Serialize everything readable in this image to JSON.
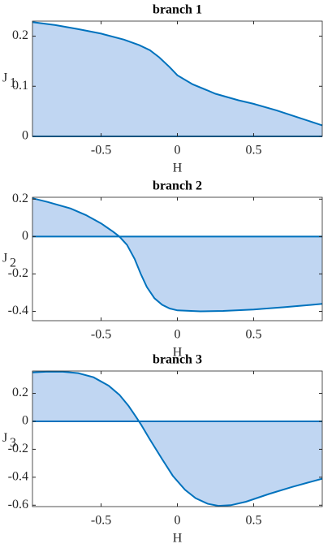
{
  "chart_data": [
    {
      "type": "area",
      "title": "branch 1",
      "xlabel": "H",
      "ylabel": "J",
      "ylabel_sub": "1",
      "color": "#0072bd",
      "fill": "#c0d6f2",
      "x": [
        -0.95,
        -0.8,
        -0.65,
        -0.5,
        -0.35,
        -0.25,
        -0.18,
        -0.12,
        -0.05,
        0,
        0.1,
        0.25,
        0.4,
        0.5,
        0.65,
        0.8,
        0.95
      ],
      "values": [
        0.228,
        0.222,
        0.214,
        0.205,
        0.193,
        0.182,
        0.172,
        0.158,
        0.138,
        0.122,
        0.104,
        0.085,
        0.072,
        0.065,
        0.052,
        0.037,
        0.022
      ],
      "xlim": [
        -0.95,
        0.95
      ],
      "ylim": [
        0,
        0.23
      ],
      "xticks": [
        -0.5,
        0,
        0.5
      ],
      "yticks": [
        0,
        0.1,
        0.2
      ]
    },
    {
      "type": "area",
      "title": "branch 2",
      "xlabel": "H",
      "ylabel": "J",
      "ylabel_sub": "2",
      "color": "#0072bd",
      "fill": "#c0d6f2",
      "x": [
        -0.95,
        -0.85,
        -0.7,
        -0.6,
        -0.5,
        -0.42,
        -0.38,
        -0.33,
        -0.28,
        -0.24,
        -0.2,
        -0.15,
        -0.1,
        -0.05,
        0,
        0.15,
        0.3,
        0.5,
        0.7,
        0.95
      ],
      "values": [
        0.205,
        0.185,
        0.15,
        0.115,
        0.07,
        0.025,
        0,
        -0.045,
        -0.12,
        -0.2,
        -0.27,
        -0.33,
        -0.365,
        -0.385,
        -0.395,
        -0.4,
        -0.398,
        -0.39,
        -0.378,
        -0.36
      ],
      "xlim": [
        -0.95,
        0.95
      ],
      "ylim": [
        -0.45,
        0.21
      ],
      "xticks": [
        -0.5,
        0,
        0.5
      ],
      "yticks": [
        -0.4,
        -0.2,
        0,
        0.2
      ]
    },
    {
      "type": "area",
      "title": "branch 3",
      "xlabel": "H",
      "ylabel": "J",
      "ylabel_sub": "3",
      "color": "#0072bd",
      "fill": "#c0d6f2",
      "x": [
        -0.95,
        -0.85,
        -0.75,
        -0.65,
        -0.55,
        -0.45,
        -0.38,
        -0.32,
        -0.27,
        -0.24,
        -0.18,
        -0.1,
        -0.03,
        0.05,
        0.12,
        0.2,
        0.27,
        0.35,
        0.45,
        0.6,
        0.75,
        0.95
      ],
      "values": [
        0.35,
        0.356,
        0.355,
        0.345,
        0.315,
        0.255,
        0.19,
        0.11,
        0.03,
        -0.02,
        -0.13,
        -0.27,
        -0.39,
        -0.49,
        -0.55,
        -0.59,
        -0.605,
        -0.6,
        -0.575,
        -0.52,
        -0.47,
        -0.41
      ],
      "xlim": [
        -0.95,
        0.95
      ],
      "ylim": [
        -0.61,
        0.36
      ],
      "xticks": [
        -0.5,
        0,
        0.5
      ],
      "yticks": [
        -0.6,
        -0.4,
        -0.2,
        0,
        0.2
      ]
    }
  ]
}
